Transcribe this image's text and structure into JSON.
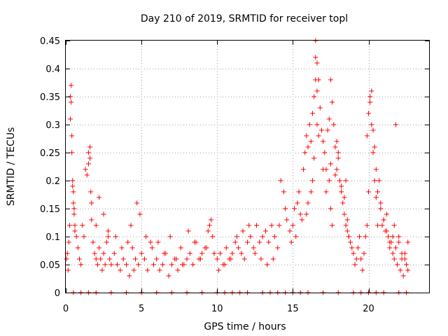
{
  "colors": {
    "series": "#ff0000",
    "grid": "#a0a0a0",
    "frame": "#000000"
  },
  "chart_data": {
    "type": "scatter",
    "title": "Day 210 of 2019, SRMTID for receiver topl",
    "xlabel": "GPS time / hours",
    "ylabel": "SRMTID / TECUs",
    "xlim": [
      0,
      24
    ],
    "ylim": [
      0,
      0.45
    ],
    "xticks": [
      0,
      5,
      10,
      15,
      20
    ],
    "xtick_labels": [
      "0",
      "5",
      "10",
      "15",
      "20"
    ],
    "yticks": [
      0,
      0.05,
      0.1,
      0.15,
      0.2,
      0.25,
      0.3,
      0.35,
      0.4,
      0.45
    ],
    "ytick_labels": [
      "0",
      "0.05",
      "0.1",
      "0.15",
      "0.2",
      "0.25",
      "0.3",
      "0.35",
      "0.4",
      "0.45"
    ],
    "grid": true,
    "marker": "+",
    "series": [
      {
        "name": "SRMTID topl",
        "color": "#ff0000",
        "x": [
          0.05,
          0.1,
          0.15,
          0.2,
          0.25,
          0.3,
          0.35,
          0.4,
          0.45,
          0.5,
          0.55,
          0.6,
          0.7,
          0.8,
          0.9,
          1.0,
          1.1,
          1.2,
          1.3,
          1.4,
          1.5,
          1.6,
          1.7,
          1.8,
          1.9,
          2.0,
          2.1,
          2.2,
          2.3,
          2.4,
          2.5,
          2.6,
          2.7,
          2.8,
          2.9,
          3.0,
          0.3,
          0.35,
          0.4,
          0.45,
          0.5,
          0.55,
          0.6,
          1.5,
          1.6,
          1.65,
          1.7,
          2.0,
          2.2,
          2.5,
          2.8,
          3.2,
          3.4,
          3.6,
          3.8,
          4.0,
          4.2,
          4.4,
          4.5,
          4.6,
          4.8,
          5.0,
          5.2,
          5.4,
          5.6,
          5.8,
          6.0,
          6.2,
          6.4,
          6.6,
          6.8,
          7.0,
          7.2,
          7.4,
          7.6,
          7.8,
          8.0,
          8.2,
          8.4,
          8.6,
          8.8,
          9.0,
          9.2,
          9.4,
          9.6,
          9.8,
          3.3,
          3.7,
          4.1,
          4.3,
          4.7,
          4.9,
          5.3,
          5.7,
          6.1,
          6.5,
          6.9,
          7.3,
          7.7,
          8.1,
          8.5,
          8.9,
          9.3,
          9.5,
          9.7,
          10.0,
          10.2,
          10.4,
          10.6,
          10.8,
          11.0,
          11.2,
          11.4,
          11.6,
          11.8,
          12.0,
          12.2,
          12.4,
          12.6,
          12.8,
          13.0,
          13.2,
          13.4,
          13.6,
          13.8,
          14.0,
          14.2,
          14.4,
          14.6,
          14.8,
          10.1,
          10.5,
          10.9,
          11.3,
          11.7,
          12.1,
          12.5,
          12.9,
          13.3,
          13.7,
          14.1,
          14.5,
          14.9,
          15.0,
          15.1,
          15.2,
          15.3,
          15.4,
          15.5,
          15.6,
          15.7,
          15.8,
          15.9,
          16.0,
          16.1,
          16.2,
          16.3,
          16.4,
          16.5,
          16.6,
          16.7,
          16.8,
          16.9,
          17.0,
          17.1,
          17.2,
          17.3,
          17.4,
          17.5,
          17.6,
          17.7,
          17.8,
          17.9,
          18.0,
          18.1,
          18.2,
          18.3,
          18.4,
          18.5,
          18.6,
          18.7,
          18.8,
          18.9,
          19.0,
          16.5,
          16.5,
          16.6,
          16.6,
          16.7,
          16.4,
          16.3,
          16.2,
          16.0,
          15.9,
          17.0,
          17.2,
          17.4,
          17.5,
          17.5,
          17.6,
          17.8,
          17.9,
          18.0,
          18.2,
          18.4,
          18.5,
          18.6,
          18.7,
          19.1,
          19.2,
          19.3,
          19.4,
          19.5,
          19.6,
          19.7,
          19.8,
          19.9,
          20.0,
          20.1,
          20.2,
          20.3,
          20.4,
          20.5,
          20.6,
          20.7,
          20.8,
          20.9,
          21.0,
          21.1,
          21.2,
          21.3,
          21.4,
          21.5,
          21.6,
          21.7,
          21.8,
          21.9,
          22.0,
          22.1,
          22.2,
          22.3,
          22.4,
          22.5,
          22.6,
          19.9,
          20.0,
          20.1,
          20.2,
          20.3,
          20.4,
          20.5,
          20.6,
          20.8,
          21.0,
          21.2,
          21.4,
          21.6,
          21.7,
          21.8,
          22.0,
          22.2,
          22.4,
          22.6,
          0.5,
          1.0,
          1.5,
          2.0,
          3.0,
          4.0,
          5.0,
          6.0,
          7.0,
          8.0,
          9.0,
          10.0,
          10.5,
          11.0,
          11.5,
          12.0,
          13.0,
          13.5,
          14.0,
          14.5,
          15.0,
          15.5,
          16.0,
          17.0,
          18.0,
          19.0,
          19.5,
          20.0,
          20.5,
          21.0,
          22.0,
          22.5
        ],
        "y": [
          0.06,
          0.07,
          0.04,
          0.09,
          0.12,
          0.35,
          0.37,
          0.28,
          0.2,
          0.18,
          0.15,
          0.12,
          0.1,
          0.08,
          0.06,
          0.05,
          0.12,
          0.1,
          0.22,
          0.21,
          0.25,
          0.24,
          0.13,
          0.09,
          0.07,
          0.06,
          0.05,
          0.08,
          0.06,
          0.04,
          0.07,
          0.05,
          0.09,
          0.11,
          0.06,
          0.05,
          0.31,
          0.34,
          0.25,
          0.19,
          0.16,
          0.14,
          0.11,
          0.23,
          0.26,
          0.18,
          0.16,
          0.12,
          0.17,
          0.14,
          0.1,
          0.07,
          0.05,
          0.04,
          0.06,
          0.05,
          0.03,
          0.08,
          0.04,
          0.06,
          0.05,
          0.07,
          0.06,
          0.04,
          0.09,
          0.05,
          0.06,
          0.04,
          0.05,
          0.07,
          0.03,
          0.05,
          0.06,
          0.04,
          0.08,
          0.05,
          0.06,
          0.07,
          0.05,
          0.09,
          0.06,
          0.07,
          0.08,
          0.11,
          0.13,
          0.07,
          0.1,
          0.08,
          0.09,
          0.12,
          0.16,
          0.14,
          0.1,
          0.08,
          0.09,
          0.07,
          0.1,
          0.06,
          0.05,
          0.11,
          0.09,
          0.06,
          0.08,
          0.12,
          0.1,
          0.06,
          0.07,
          0.05,
          0.08,
          0.06,
          0.07,
          0.09,
          0.08,
          0.07,
          0.06,
          0.09,
          0.1,
          0.08,
          0.12,
          0.09,
          0.1,
          0.11,
          0.09,
          0.12,
          0.1,
          0.08,
          0.2,
          0.18,
          0.13,
          0.11,
          0.04,
          0.05,
          0.06,
          0.1,
          0.11,
          0.12,
          0.07,
          0.06,
          0.05,
          0.06,
          0.12,
          0.15,
          0.09,
          0.12,
          0.15,
          0.1,
          0.16,
          0.18,
          0.14,
          0.13,
          0.22,
          0.25,
          0.28,
          0.26,
          0.3,
          0.27,
          0.32,
          0.35,
          0.42,
          0.41,
          0.38,
          0.33,
          0.29,
          0.27,
          0.25,
          0.22,
          0.29,
          0.31,
          0.38,
          0.34,
          0.3,
          0.26,
          0.22,
          0.25,
          0.2,
          0.18,
          0.16,
          0.14,
          0.12,
          0.11,
          0.1,
          0.09,
          0.08,
          0.07,
          0.45,
          0.38,
          0.36,
          0.3,
          0.28,
          0.24,
          0.2,
          0.18,
          0.16,
          0.14,
          0.22,
          0.18,
          0.2,
          0.23,
          0.15,
          0.12,
          0.21,
          0.27,
          0.24,
          0.19,
          0.17,
          0.2,
          0.13,
          0.1,
          0.05,
          0.06,
          0.08,
          0.1,
          0.06,
          0.04,
          0.07,
          0.1,
          0.12,
          0.18,
          0.35,
          0.3,
          0.29,
          0.26,
          0.22,
          0.18,
          0.2,
          0.16,
          0.12,
          0.13,
          0.11,
          0.14,
          0.1,
          0.08,
          0.09,
          0.07,
          0.06,
          0.08,
          0.05,
          0.1,
          0.04,
          0.06,
          0.03,
          0.07,
          0.05,
          0.09,
          0.28,
          0.32,
          0.34,
          0.36,
          0.25,
          0.2,
          0.17,
          0.12,
          0.15,
          0.13,
          0.11,
          0.09,
          0.1,
          0.12,
          0.3,
          0.09,
          0.07,
          0.06,
          0.04,
          0.0,
          0.0,
          0.0,
          0.0,
          0.0,
          0.0,
          0.0,
          0.0,
          0.0,
          0.0,
          0.0,
          0.0,
          0.0,
          0.0,
          0.0,
          0.0,
          0.0,
          0.0,
          0.0,
          0.0,
          0.0,
          0.0,
          0.0,
          0.0,
          0.0,
          0.0,
          0.0,
          0.0,
          0.0,
          0.0,
          0.0,
          0.0
        ]
      }
    ]
  }
}
